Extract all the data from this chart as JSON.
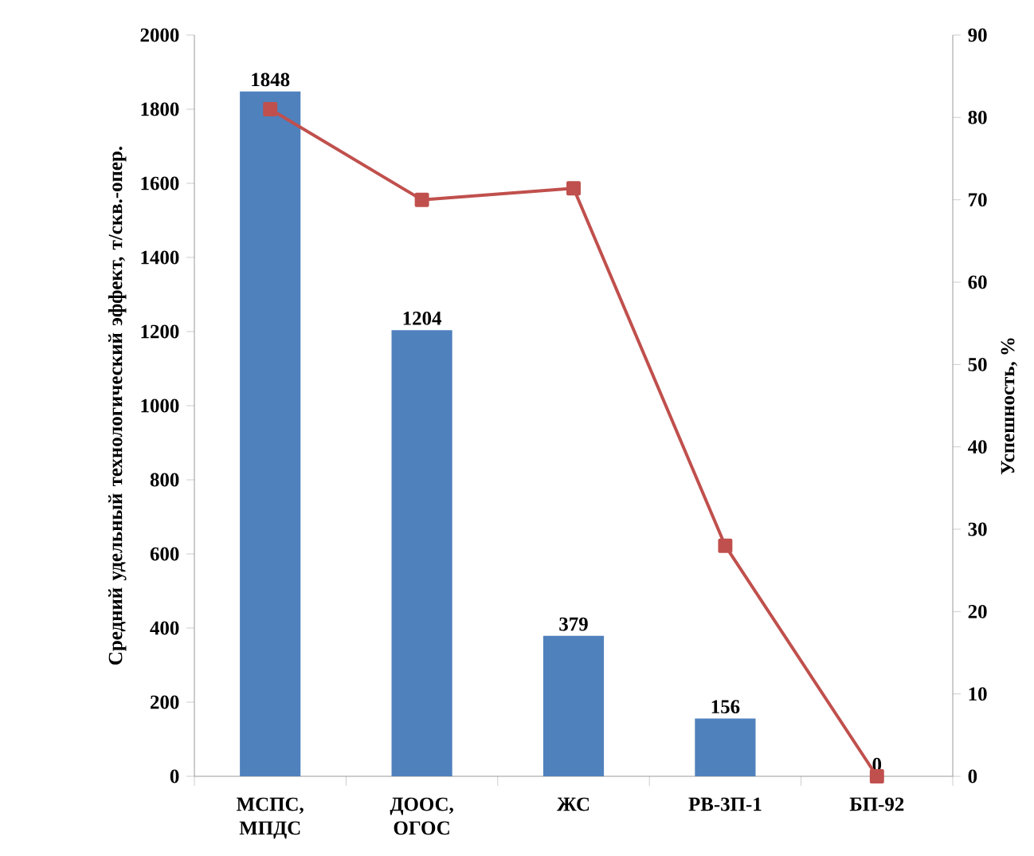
{
  "chart_data": {
    "type": "bar",
    "categories": [
      "МСПС, МПДС",
      "ДООС, ОГОС",
      "ЖС",
      "РВ-3П-1",
      "БП-92"
    ],
    "ylabel": "Средний удельный технологический эффект, т/скв.-опер.",
    "y2label": "Успешность, %",
    "ylim": [
      0,
      2000
    ],
    "yticks": [
      0,
      200,
      400,
      600,
      800,
      1000,
      1200,
      1400,
      1600,
      1800,
      2000
    ],
    "y2lim": [
      0,
      90
    ],
    "y2ticks": [
      0,
      10,
      20,
      30,
      40,
      50,
      60,
      70,
      80,
      90
    ],
    "series": [
      {
        "color": "#4f81bd",
        "values": [
          1848,
          1204,
          379,
          156,
          0
        ],
        "value_labels": [
          "1848",
          "1204",
          "379",
          "156",
          "0"
        ]
      },
      {
        "type": "line",
        "axis": "y2",
        "color": "#c0504d",
        "marker": "square",
        "values": [
          81,
          70,
          71.4,
          28,
          0
        ]
      }
    ]
  }
}
